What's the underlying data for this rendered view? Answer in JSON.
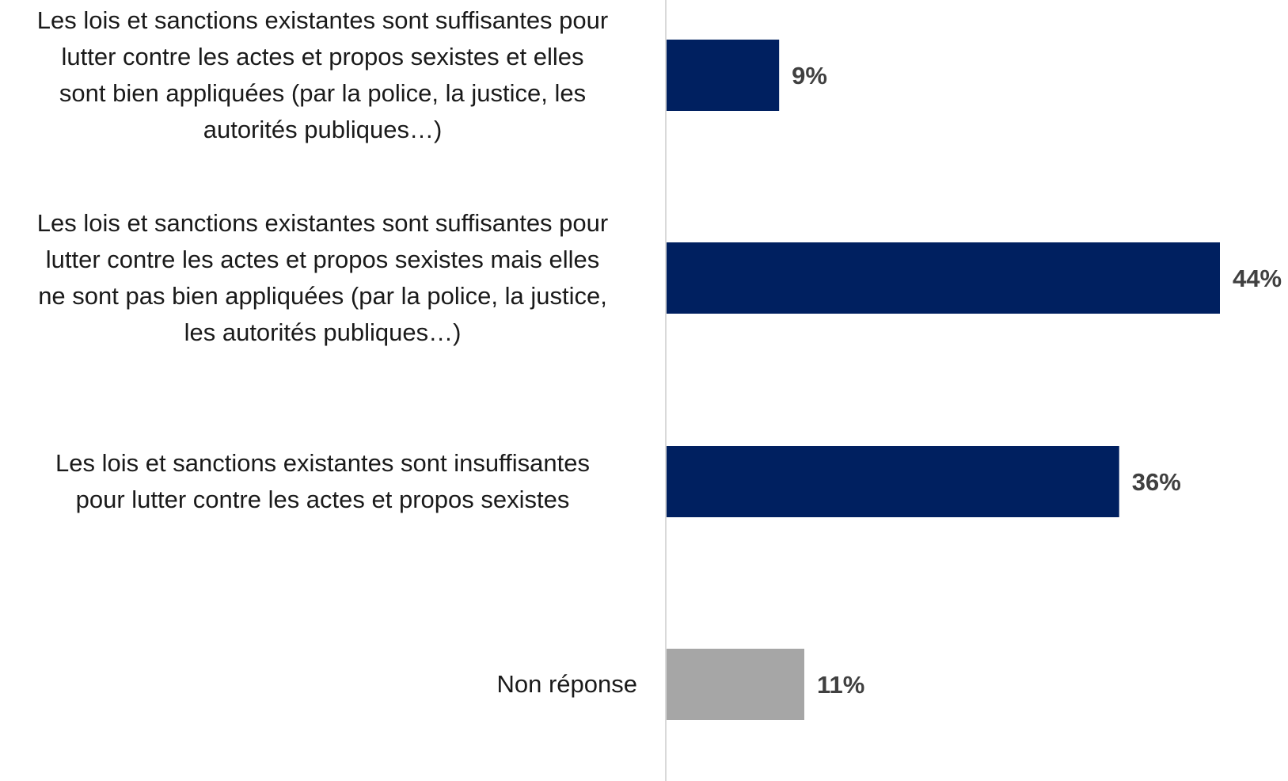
{
  "chart_data": {
    "type": "bar",
    "orientation": "horizontal",
    "categories": [
      "Les lois et sanctions existantes sont suffisantes pour lutter contre les actes et propos sexistes et elles sont bien appliquées (par la police, la justice, les autorités publiques…)",
      "Les lois et sanctions existantes sont suffisantes pour lutter contre les actes et propos sexistes mais elles ne sont pas bien appliquées (par la police, la justice, les autorités publiques…)",
      "Les lois et sanctions existantes sont insuffisantes pour lutter contre les actes et propos sexistes",
      "Non réponse"
    ],
    "category_lines": [
      [
        "Les lois et sanctions existantes sont suffisantes pour",
        "lutter contre les actes et propos sexistes et elles",
        "sont bien appliquées (par la police, la justice, les",
        "autorités publiques…)"
      ],
      [
        "Les lois et sanctions existantes sont suffisantes pour",
        "lutter contre les actes et propos sexistes mais elles",
        "ne sont pas bien appliquées (par la police, la justice,",
        "les autorités publiques…)"
      ],
      [
        "Les lois et sanctions existantes sont insuffisantes",
        "pour lutter contre les actes et propos sexistes"
      ],
      [
        "Non réponse"
      ]
    ],
    "values": [
      9,
      44,
      36,
      11
    ],
    "value_labels": [
      "9%",
      "44%",
      "36%",
      "11%"
    ],
    "unit": "%",
    "xlim": [
      0,
      44
    ],
    "colors": [
      "#002060",
      "#002060",
      "#002060",
      "#A6A6A6"
    ],
    "label_color": "#404040",
    "axis_color": "#D9D9D9",
    "grid": false,
    "legend": "none"
  }
}
